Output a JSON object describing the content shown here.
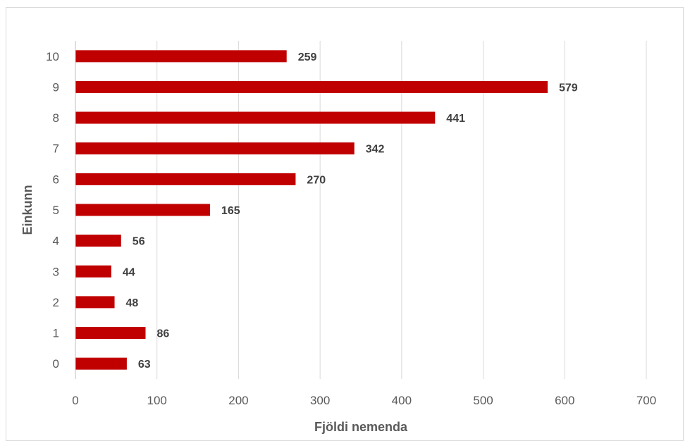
{
  "chart_data": {
    "type": "bar",
    "orientation": "horizontal",
    "categories": [
      "0",
      "1",
      "2",
      "3",
      "4",
      "5",
      "6",
      "7",
      "8",
      "9",
      "10"
    ],
    "values": [
      63,
      86,
      48,
      44,
      56,
      165,
      270,
      342,
      441,
      579,
      259
    ],
    "xlabel": "Fjöldi nemenda",
    "ylabel": "Einkunn",
    "xlim": [
      0,
      700
    ],
    "xticks": [
      0,
      100,
      200,
      300,
      400,
      500,
      600,
      700
    ],
    "grid": "vertical",
    "legend": "none",
    "bar_color": "#c00000",
    "data_labels": true
  }
}
